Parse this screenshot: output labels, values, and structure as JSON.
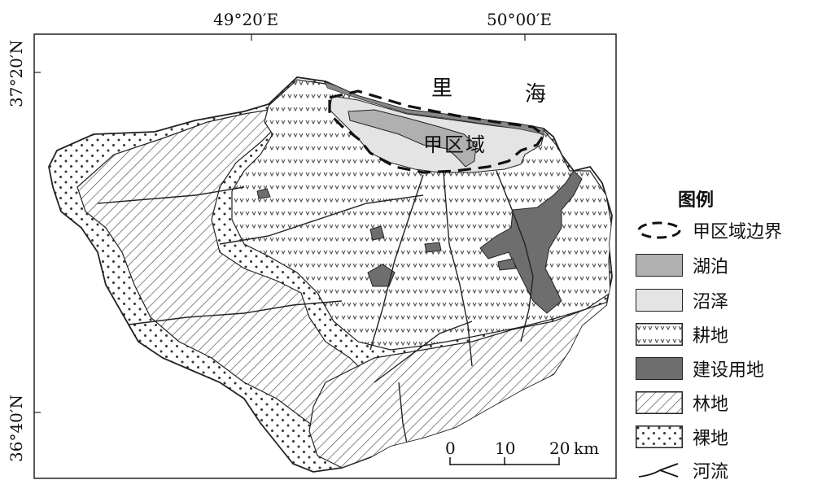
{
  "coordinates": {
    "lon_left": "49°20′E",
    "lon_right": "50°00′E",
    "lat_top": "37°20′N",
    "lat_bottom": "36°40′N"
  },
  "map_labels": {
    "sea_char_1": "里",
    "sea_char_2": "海",
    "region": "甲区域"
  },
  "legend": {
    "title": "图例",
    "items": [
      {
        "label": "甲区域边界",
        "symbol": "dashed-boundary"
      },
      {
        "label": "湖泊",
        "symbol": "lake-swatch",
        "color": "#b0b0b0"
      },
      {
        "label": "沼泽",
        "symbol": "marsh-swatch",
        "color": "#e4e4e4"
      },
      {
        "label": "耕地",
        "symbol": "farmland-pattern"
      },
      {
        "label": "建设用地",
        "symbol": "builtup-swatch",
        "color": "#6e6e6e"
      },
      {
        "label": "林地",
        "symbol": "forest-hatch"
      },
      {
        "label": "裸地",
        "symbol": "bare-dots"
      },
      {
        "label": "河流",
        "symbol": "river-line"
      }
    ]
  },
  "scale_bar": {
    "ticks": [
      "0",
      "10",
      "20"
    ],
    "unit": "km"
  }
}
